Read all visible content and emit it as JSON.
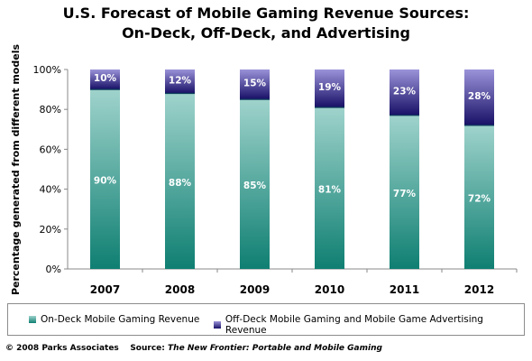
{
  "chart_data": {
    "type": "bar",
    "stacked": true,
    "title_line1": "U.S. Forecast of Mobile Gaming Revenue Sources:",
    "title_line2": "On-Deck, Off-Deck, and Advertising",
    "ylabel_line1": "Percentage generated from different models",
    "xlabel": "",
    "categories": [
      "2007",
      "2008",
      "2009",
      "2010",
      "2011",
      "2012"
    ],
    "y_ticks": [
      "0%",
      "20%",
      "40%",
      "60%",
      "80%",
      "100%"
    ],
    "ylim": [
      0,
      100
    ],
    "series": [
      {
        "name": "On-Deck Mobile Gaming Revenue",
        "values": [
          90,
          88,
          85,
          81,
          77,
          72
        ],
        "labels": [
          "90%",
          "88%",
          "85%",
          "81%",
          "77%",
          "72%"
        ],
        "color": "#5fb5ab"
      },
      {
        "name": "Off-Deck Mobile Gaming and Mobile Game Advertising Revenue",
        "values": [
          10,
          12,
          15,
          19,
          23,
          28
        ],
        "labels": [
          "10%",
          "12%",
          "15%",
          "19%",
          "23%",
          "28%"
        ],
        "color": "#5b4fb5"
      }
    ],
    "grid": false,
    "legend_position": "bottom"
  },
  "footer": {
    "copyright": "© 2008 Parks Associates",
    "source_prefix": "Source:",
    "source_title": "The New Frontier: Portable and Mobile Gaming"
  }
}
